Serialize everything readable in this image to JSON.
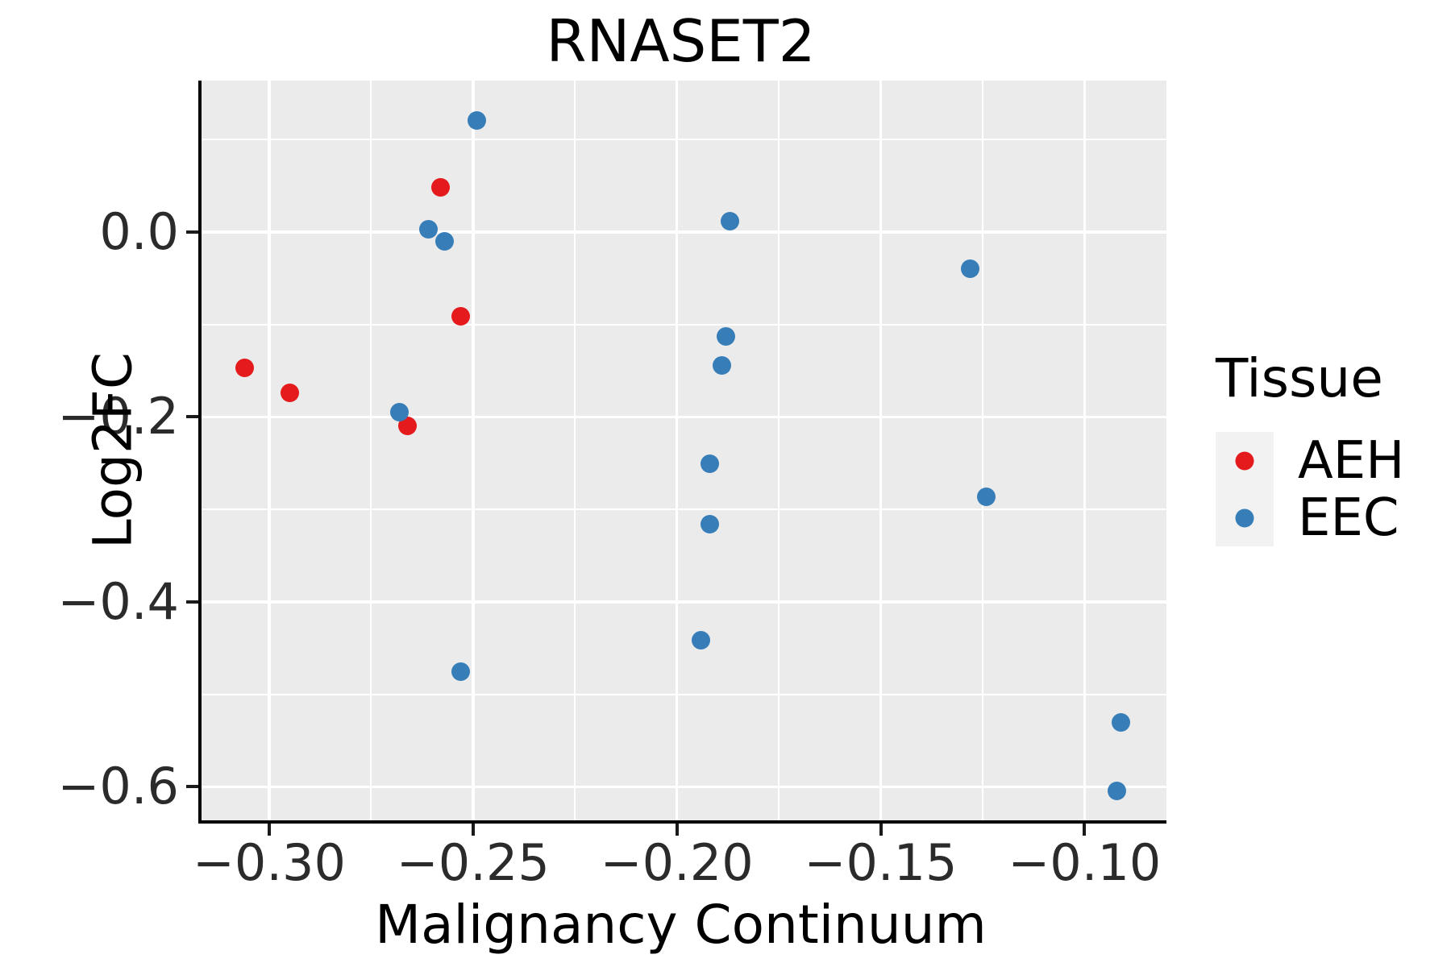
{
  "title": "RNASET2",
  "colors": {
    "aeh": "#E41A1C",
    "eec": "#377EB8",
    "panel_bg": "#EBEBEB",
    "grid": "#FFFFFF",
    "axis_line": "#000000",
    "legend_key_bg": "#F2F2F2"
  },
  "legend": {
    "title": "Tissue",
    "items": [
      {
        "label": "AEH",
        "color": "#E41A1C"
      },
      {
        "label": "EEC",
        "color": "#377EB8"
      }
    ]
  },
  "chart_data": {
    "type": "scatter",
    "title": "RNASET2",
    "xlabel": "Malignancy Continuum",
    "ylabel": "Log2FC",
    "xlim": [
      -0.3166,
      -0.0799
    ],
    "ylim": [
      -0.6362,
      0.1638
    ],
    "grid": true,
    "legend_position": "right",
    "x_major_ticks": [
      -0.3,
      -0.25,
      -0.2,
      -0.15,
      -0.1
    ],
    "x_minor_ticks": [
      -0.275,
      -0.225,
      -0.175,
      -0.125
    ],
    "x_tick_labels": [
      "−0.30",
      "−0.25",
      "−0.20",
      "−0.15",
      "−0.10"
    ],
    "y_major_ticks": [
      0.0,
      -0.2,
      -0.4,
      -0.6
    ],
    "y_minor_ticks": [
      0.1,
      -0.1,
      -0.3,
      -0.5
    ],
    "y_tick_labels": [
      "0.0",
      "−0.2",
      "−0.4",
      "−0.6"
    ],
    "series": [
      {
        "name": "AEH",
        "color": "#E41A1C",
        "points": [
          [
            -0.306,
            -0.147
          ],
          [
            -0.295,
            -0.174
          ],
          [
            -0.258,
            0.048
          ],
          [
            -0.253,
            -0.091
          ],
          [
            -0.266,
            -0.21
          ]
        ]
      },
      {
        "name": "EEC",
        "color": "#377EB8",
        "points": [
          [
            -0.249,
            0.121
          ],
          [
            -0.261,
            0.003
          ],
          [
            -0.257,
            -0.01
          ],
          [
            -0.268,
            -0.195
          ],
          [
            -0.253,
            -0.475
          ],
          [
            -0.187,
            0.012
          ],
          [
            -0.188,
            -0.113
          ],
          [
            -0.189,
            -0.144
          ],
          [
            -0.192,
            -0.251
          ],
          [
            -0.192,
            -0.316
          ],
          [
            -0.194,
            -0.441
          ],
          [
            -0.128,
            -0.04
          ],
          [
            -0.124,
            -0.286
          ],
          [
            -0.091,
            -0.53
          ],
          [
            -0.092,
            -0.604
          ]
        ]
      }
    ]
  }
}
